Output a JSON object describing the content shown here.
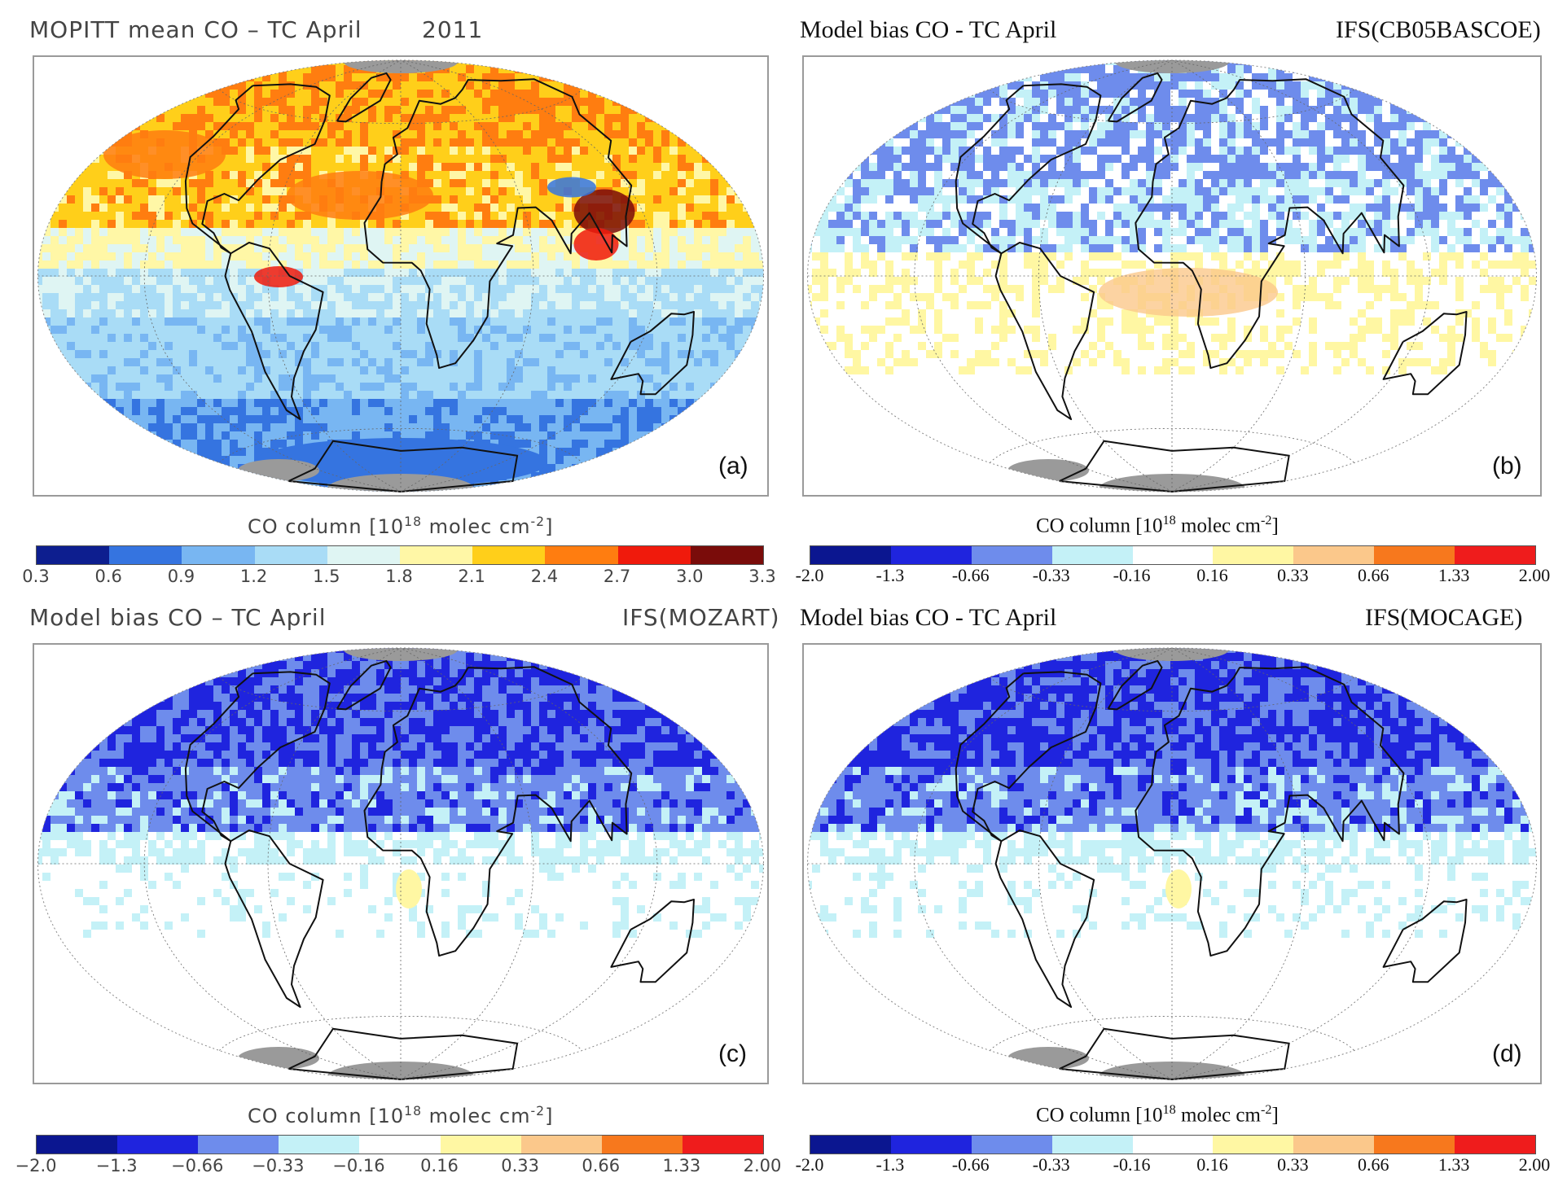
{
  "panels": [
    {
      "id": "a",
      "title_left": "MOPITT mean CO – TC April",
      "title_right": "2011",
      "label": "(a)",
      "style": "sans",
      "map_type": "mean",
      "colorbar": {
        "title_pre": "CO column [10",
        "title_exp1": "18",
        "title_mid": " molec cm",
        "title_exp2": "-2",
        "title_post": "]",
        "ticks": [
          "0.3",
          "0.6",
          "0.9",
          "1.2",
          "1.5",
          "1.8",
          "2.1",
          "2.4",
          "2.7",
          "3.0",
          "3.3"
        ],
        "colors": [
          "#0d1e8f",
          "#3574e0",
          "#78b6f2",
          "#a9dcf6",
          "#dff5f3",
          "#fff7a6",
          "#ffcf1a",
          "#ff7d10",
          "#f01a0c",
          "#7a0c0a"
        ]
      }
    },
    {
      "id": "b",
      "title_left": "Model bias CO - TC April",
      "title_right": "IFS(CB05BASCOE)",
      "label": "(b)",
      "style": "serif",
      "map_type": "bias_b",
      "colorbar": {
        "title_pre": "CO column [10",
        "title_exp1": "18",
        "title_mid": " molec cm",
        "title_exp2": "-2",
        "title_post": "]",
        "ticks": [
          "-2.0",
          "-1.3",
          "-0.66",
          "-0.33",
          "-0.16",
          "0.16",
          "0.33",
          "0.66",
          "1.33",
          "2.00"
        ],
        "colors": [
          "#0b1690",
          "#1f24de",
          "#6e8cec",
          "#c4f1f7",
          "#ffffff",
          "#fff7a3",
          "#fbc88b",
          "#f7781d",
          "#ef1c1c"
        ]
      }
    },
    {
      "id": "c",
      "title_left": "Model bias CO – TC April",
      "title_right": "IFS(MOZART)",
      "label": "(c)",
      "style": "sans",
      "map_type": "bias_c",
      "colorbar": {
        "title_pre": "CO column [10",
        "title_exp1": "18",
        "title_mid": " molec cm",
        "title_exp2": "-2",
        "title_post": "]",
        "ticks": [
          "−2.0",
          "−1.3",
          "−0.66",
          "−0.33",
          "−0.16",
          "0.16",
          "0.33",
          "0.66",
          "1.33",
          "2.00"
        ],
        "colors": [
          "#0b1690",
          "#1f24de",
          "#6e8cec",
          "#c4f1f7",
          "#ffffff",
          "#fff7a3",
          "#fbc88b",
          "#f7781d",
          "#ef1c1c"
        ]
      }
    },
    {
      "id": "d",
      "title_left": "Model bias CO - TC April",
      "title_right": "IFS(MOCAGE)",
      "label": "(d)",
      "style": "serif",
      "map_type": "bias_c",
      "colorbar": {
        "title_pre": "CO column [10",
        "title_exp1": "18",
        "title_mid": " molec cm",
        "title_exp2": "-2",
        "title_post": "]",
        "ticks": [
          "-2.0",
          "-1.3",
          "-0.66",
          "-0.33",
          "-0.16",
          "0.16",
          "0.33",
          "0.66",
          "1.33",
          "2.00"
        ],
        "colors": [
          "#0b1690",
          "#1f24de",
          "#6e8cec",
          "#c4f1f7",
          "#ffffff",
          "#fff7a3",
          "#fbc88b",
          "#f7781d",
          "#ef1c1c"
        ]
      }
    }
  ]
}
